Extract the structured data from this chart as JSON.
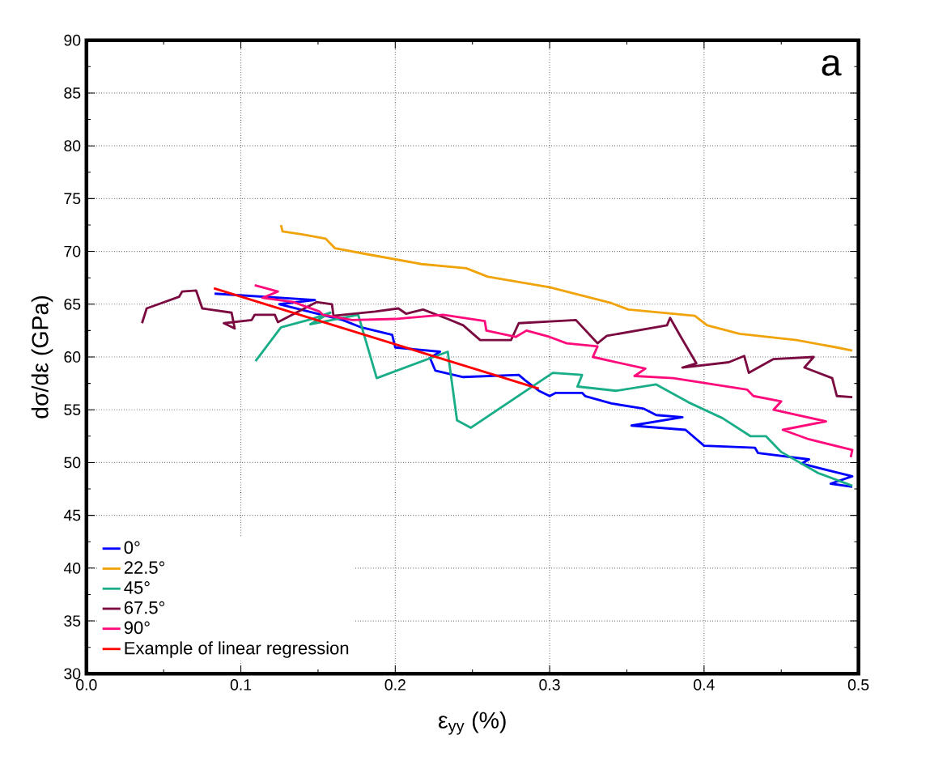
{
  "chart_data": {
    "type": "line",
    "xlabel": "ε$_{yy}$ (%)",
    "ylabel": "dσ/dε (GPa)",
    "annotations": [
      "a"
    ],
    "xlim": [
      0,
      0.5
    ],
    "ylim": [
      30,
      90
    ],
    "xticks": [
      {
        "value": 0,
        "label": "0.0"
      },
      0.1,
      0.2,
      0.3,
      0.4,
      0.5
    ],
    "yticks": [
      30,
      35,
      40,
      45,
      50,
      55,
      60,
      65,
      70,
      75,
      80,
      85,
      90
    ],
    "grid": true,
    "legend": "bottom left",
    "series": [
      {
        "name": "0°",
        "color": "#0000ff",
        "x": [
          0.083,
          0.148,
          0.125,
          0.166,
          0.178,
          0.198,
          0.2,
          0.229,
          0.2225,
          0.226,
          0.244,
          0.28,
          0.284,
          0.293,
          0.3,
          0.304,
          0.321,
          0.323,
          0.34,
          0.361,
          0.369,
          0.386,
          0.353,
          0.388,
          0.4,
          0.433,
          0.435,
          0.468,
          0.463,
          0.496,
          0.482,
          0.496
        ],
        "values": [
          66.0,
          65.4,
          65.0,
          63.5,
          62.8,
          62.1,
          60.9,
          60.5,
          59.9,
          58.7,
          58.1,
          58.3,
          57.8,
          56.8,
          56.3,
          56.6,
          56.6,
          56.3,
          55.6,
          55.1,
          54.5,
          54.3,
          53.5,
          53.1,
          51.6,
          51.4,
          50.9,
          50.3,
          49.9,
          48.7,
          48.0,
          47.7
        ]
      },
      {
        "name": "22.5°",
        "color": "#f0a30a",
        "x": [
          0.126,
          0.127,
          0.14,
          0.155,
          0.161,
          0.183,
          0.217,
          0.246,
          0.26,
          0.3,
          0.34,
          0.351,
          0.394,
          0.402,
          0.423,
          0.46,
          0.486,
          0.496
        ],
        "values": [
          72.5,
          71.9,
          71.6,
          71.2,
          70.3,
          69.7,
          68.8,
          68.4,
          67.6,
          66.6,
          65.1,
          64.5,
          63.9,
          63.0,
          62.2,
          61.6,
          60.9,
          60.6
        ]
      },
      {
        "name": "45°",
        "color": "#1aae88",
        "x": [
          0.1095,
          0.126,
          0.146,
          0.158,
          0.145,
          0.176,
          0.188,
          0.234,
          0.24,
          0.249,
          0.302,
          0.321,
          0.318,
          0.343,
          0.369,
          0.39,
          0.412,
          0.43,
          0.44,
          0.45,
          0.474,
          0.496
        ],
        "values": [
          59.6,
          62.8,
          63.6,
          64.2,
          63.1,
          64.0,
          58.0,
          60.5,
          54.0,
          53.3,
          58.5,
          58.3,
          57.2,
          56.8,
          57.4,
          55.7,
          54.2,
          52.5,
          52.5,
          51.0,
          49.0,
          47.8
        ]
      },
      {
        "name": "67.5°",
        "color": "#7a0a3f",
        "x": [
          0.036,
          0.039,
          0.06,
          0.062,
          0.071,
          0.075,
          0.094,
          0.096,
          0.089,
          0.107,
          0.109,
          0.122,
          0.124,
          0.149,
          0.159,
          0.16,
          0.187,
          0.202,
          0.207,
          0.218,
          0.234,
          0.244,
          0.255,
          0.275,
          0.28,
          0.305,
          0.317,
          0.331,
          0.337,
          0.376,
          0.378,
          0.385,
          0.395,
          0.386,
          0.416,
          0.426,
          0.429,
          0.445,
          0.471,
          0.465,
          0.483,
          0.486,
          0.496
        ],
        "values": [
          63.2,
          64.6,
          65.7,
          66.2,
          66.3,
          64.6,
          64.2,
          62.7,
          63.2,
          63.5,
          64.0,
          64.0,
          63.3,
          65.2,
          65.0,
          63.9,
          64.3,
          64.6,
          64.1,
          64.5,
          63.6,
          63.0,
          61.6,
          61.6,
          63.2,
          63.4,
          63.5,
          61.3,
          62.0,
          63.0,
          63.7,
          61.9,
          59.4,
          59.0,
          59.5,
          60.1,
          58.5,
          59.8,
          60.0,
          59.0,
          58.0,
          56.3,
          56.2
        ]
      },
      {
        "name": "90°",
        "color": "#ff0a7a",
        "x": [
          0.109,
          0.124,
          0.114,
          0.134,
          0.151,
          0.153,
          0.172,
          0.2,
          0.231,
          0.258,
          0.259,
          0.278,
          0.285,
          0.3,
          0.311,
          0.331,
          0.328,
          0.34,
          0.362,
          0.355,
          0.38,
          0.428,
          0.432,
          0.45,
          0.445,
          0.479,
          0.451,
          0.468,
          0.496,
          0.495
        ],
        "values": [
          66.8,
          66.2,
          65.6,
          65.2,
          64.3,
          64.0,
          63.5,
          63.6,
          64.0,
          63.4,
          62.5,
          61.9,
          62.5,
          61.9,
          61.3,
          61.0,
          60.0,
          59.6,
          58.9,
          58.2,
          58.0,
          56.9,
          56.3,
          55.8,
          55.0,
          53.9,
          53.1,
          52.2,
          51.2,
          50.5
        ]
      },
      {
        "name": "Example of linear regression",
        "color": "#ff0000",
        "x": [
          0.0825,
          0.293
        ],
        "values": [
          66.5,
          57.0
        ]
      }
    ]
  }
}
